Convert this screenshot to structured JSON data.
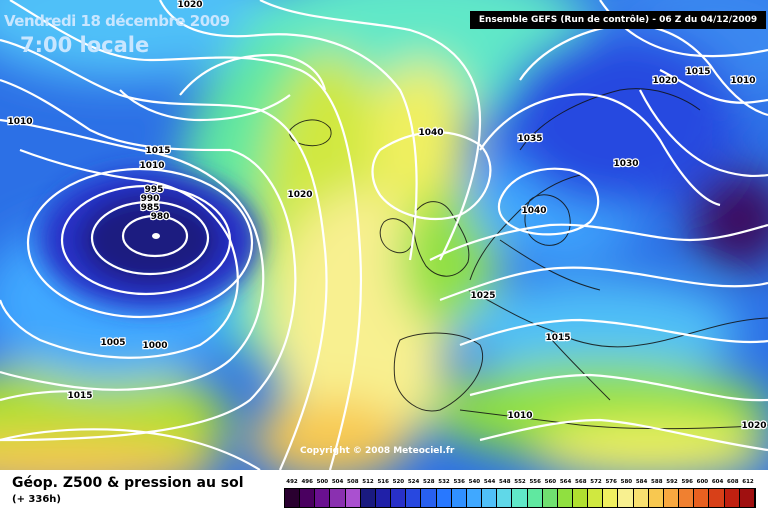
{
  "header": {
    "date": "Vendredi 18 décembre 2009",
    "time": "7:00 locale",
    "model_info": "Ensemble GEFS (Run de contrôle)  -  06 Z du 04/12/2009"
  },
  "legend": {
    "title": "Géop. Z500 & pression au sol",
    "forecast_hours": "(+ 336h)",
    "scale_values": [
      "492",
      "496",
      "500",
      "504",
      "508",
      "512",
      "516",
      "520",
      "524",
      "528",
      "532",
      "536",
      "540",
      "544",
      "548",
      "552",
      "556",
      "560",
      "564",
      "568",
      "572",
      "576",
      "580",
      "584",
      "588",
      "592",
      "596",
      "600",
      "604",
      "608",
      "612"
    ],
    "scale_colors": [
      "#2a0030",
      "#4a0060",
      "#6a1090",
      "#8a30b0",
      "#aa50d0",
      "#1a1a80",
      "#2020a8",
      "#2830c8",
      "#2848e0",
      "#2860f0",
      "#2878ff",
      "#3090ff",
      "#40a8ff",
      "#50c0f8",
      "#60d8e8",
      "#60e8c8",
      "#60e8a0",
      "#70e070",
      "#90e040",
      "#b0e030",
      "#d0e840",
      "#f0f060",
      "#f8f090",
      "#f8e070",
      "#f8c850",
      "#f8a840",
      "#f08030",
      "#e86020",
      "#d84018",
      "#c02010",
      "#a01010"
    ]
  },
  "map": {
    "isobar_labels": [
      "1020",
      "1010",
      "1015",
      "1010",
      "995",
      "990",
      "985",
      "980",
      "1020",
      "1040",
      "1035",
      "1040",
      "1030",
      "1020",
      "1015",
      "1010",
      "1025",
      "1015",
      "1005",
      "1000",
      "1015",
      "1010",
      "1020"
    ],
    "copyright": "Copyright © 2008 Meteociel.fr"
  }
}
